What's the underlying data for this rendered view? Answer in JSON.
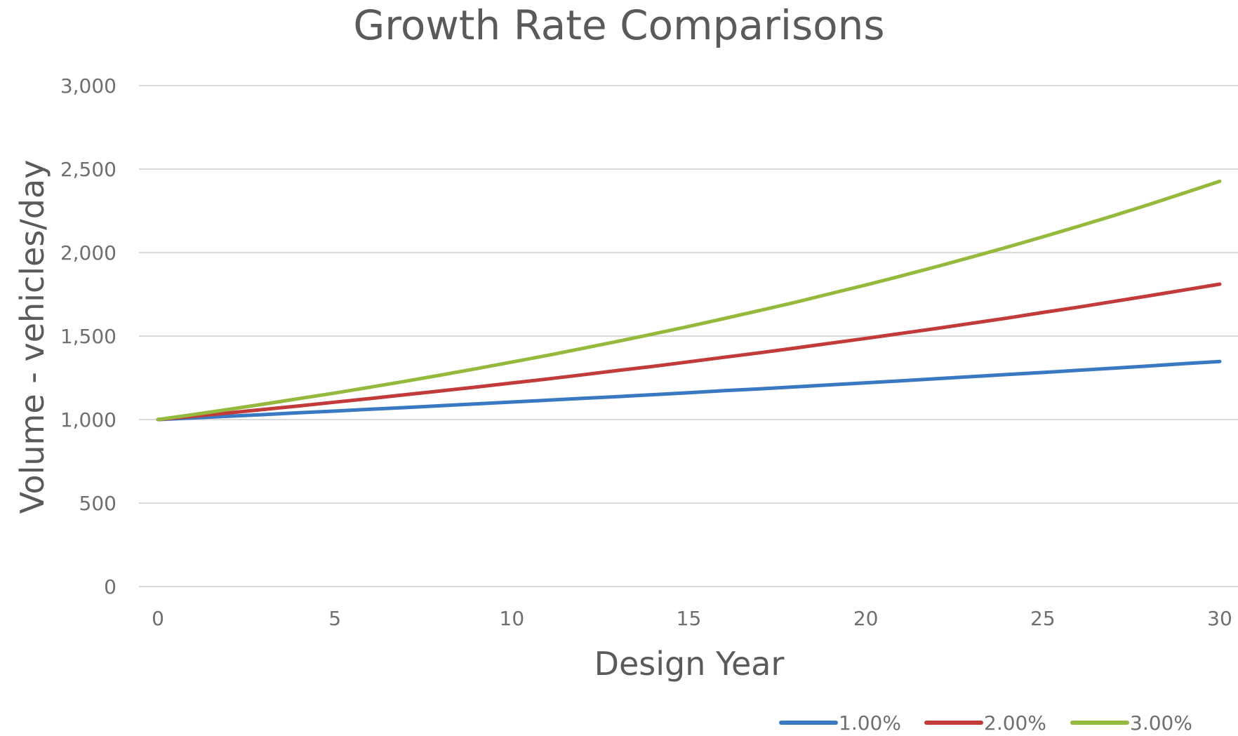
{
  "chart_data": {
    "type": "line",
    "title": "Growth Rate Comparisons",
    "xlabel": "Design Year",
    "ylabel": "Volume - vehicles/day",
    "xlim": [
      0,
      30
    ],
    "ylim": [
      0,
      3000
    ],
    "x_ticks": [
      0,
      5,
      10,
      15,
      20,
      25,
      30
    ],
    "x_tick_labels": [
      "0",
      "5",
      "10",
      "15",
      "20",
      "25",
      "30"
    ],
    "y_ticks": [
      0,
      500,
      1000,
      1500,
      2000,
      2500,
      3000
    ],
    "y_tick_labels": [
      "0",
      "500",
      "1,000",
      "1,500",
      "2,000",
      "2,500",
      "3,000"
    ],
    "grid": true,
    "legend_position": "bottom-right",
    "x": [
      0,
      1,
      2,
      3,
      4,
      5,
      6,
      7,
      8,
      9,
      10,
      11,
      12,
      13,
      14,
      15,
      16,
      17,
      18,
      19,
      20,
      21,
      22,
      23,
      24,
      25,
      26,
      27,
      28,
      29,
      30
    ],
    "series": [
      {
        "name": "1.00%",
        "color": "#3a78c2",
        "values": [
          1000,
          1010,
          1020,
          1030,
          1041,
          1051,
          1062,
          1072,
          1083,
          1094,
          1105,
          1116,
          1127,
          1138,
          1149,
          1161,
          1173,
          1184,
          1196,
          1208,
          1220,
          1232,
          1245,
          1257,
          1270,
          1282,
          1295,
          1308,
          1321,
          1335,
          1348
        ]
      },
      {
        "name": "2.00%",
        "color": "#c33a3a",
        "values": [
          1000,
          1020,
          1040,
          1061,
          1082,
          1104,
          1126,
          1149,
          1172,
          1195,
          1219,
          1243,
          1268,
          1294,
          1319,
          1346,
          1373,
          1400,
          1428,
          1457,
          1486,
          1516,
          1546,
          1577,
          1608,
          1641,
          1673,
          1707,
          1741,
          1776,
          1811
        ]
      },
      {
        "name": "3.00%",
        "color": "#95b93c",
        "values": [
          1000,
          1030,
          1061,
          1093,
          1126,
          1159,
          1194,
          1230,
          1267,
          1305,
          1344,
          1384,
          1426,
          1469,
          1513,
          1558,
          1605,
          1653,
          1702,
          1754,
          1806,
          1860,
          1916,
          1974,
          2033,
          2094,
          2157,
          2221,
          2288,
          2357,
          2427
        ]
      }
    ]
  }
}
